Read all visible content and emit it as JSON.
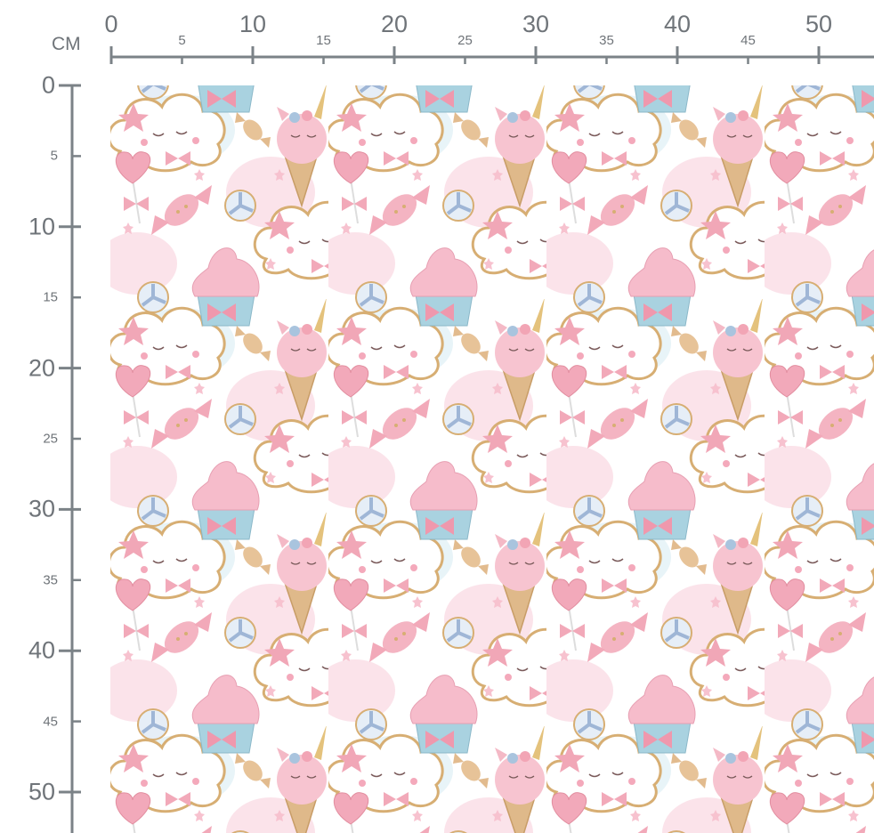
{
  "ruler": {
    "unit": "CM",
    "horizontal": {
      "range_cm": [
        0,
        53
      ],
      "major_labels": [
        "0",
        "10",
        "20",
        "30",
        "40",
        "50"
      ],
      "minor_labels": [
        "5",
        "15",
        "25",
        "35",
        "45"
      ]
    },
    "vertical": {
      "range_cm": [
        0,
        52
      ],
      "major_labels": [
        "0",
        "10",
        "20",
        "30",
        "40",
        "50"
      ],
      "minor_labels": [
        "5",
        "15",
        "25",
        "35",
        "45"
      ]
    },
    "color": "#6f7479"
  },
  "fabric": {
    "pattern_motifs": [
      "cloud-face",
      "unicorn-ice-cream",
      "heart-lollipop",
      "wrapped-candy",
      "swirl-lollipop",
      "cupcake",
      "stars"
    ],
    "colors": {
      "background": "#ffffff",
      "pink": "#f4b9c6",
      "blue": "#cfe8f1",
      "gold": "#d7ae73",
      "cone": "#dfb98a"
    }
  }
}
